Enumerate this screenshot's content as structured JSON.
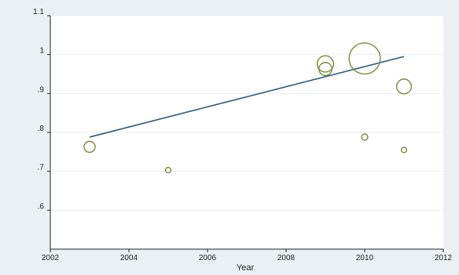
{
  "chart_data": {
    "type": "scatter",
    "title": "",
    "xlabel": "Year",
    "ylabel": "",
    "xlim": [
      2002,
      2012
    ],
    "ylim": [
      0.5,
      1.1
    ],
    "grid": "horizontal",
    "legend": "none",
    "x_ticks": [
      2002,
      2004,
      2006,
      2008,
      2010,
      2012
    ],
    "x_tick_labels": [
      "2002",
      "2004",
      "2006",
      "2008",
      "2010",
      "2012"
    ],
    "y_ticks": [
      0.6,
      0.7,
      0.8,
      0.9,
      1.0,
      1.1
    ],
    "y_tick_labels": [
      ".6",
      ".7",
      ".8",
      ".9",
      "1",
      "1.1"
    ],
    "points": [
      {
        "x": 2003,
        "y": 0.763,
        "weight": 0.25
      },
      {
        "x": 2005,
        "y": 0.703,
        "weight": 0.06
      },
      {
        "x": 2009,
        "y": 0.976,
        "weight": 0.55
      },
      {
        "x": 2009,
        "y": 0.963,
        "weight": 0.35
      },
      {
        "x": 2010,
        "y": 0.99,
        "weight": 2.0
      },
      {
        "x": 2010,
        "y": 0.788,
        "weight": 0.08
      },
      {
        "x": 2011,
        "y": 0.918,
        "weight": 0.45
      },
      {
        "x": 2011,
        "y": 0.755,
        "weight": 0.06
      }
    ],
    "fit_line": {
      "x": [
        2003,
        2011
      ],
      "y": [
        0.788,
        0.995
      ]
    },
    "colors": {
      "marker": "#7a8a3a",
      "fit_line": "#2e5a7a",
      "grid": "#e8eef2",
      "axis": "#222222",
      "outer_background": "#eaf0f4",
      "plot_background": "#ffffff"
    }
  }
}
